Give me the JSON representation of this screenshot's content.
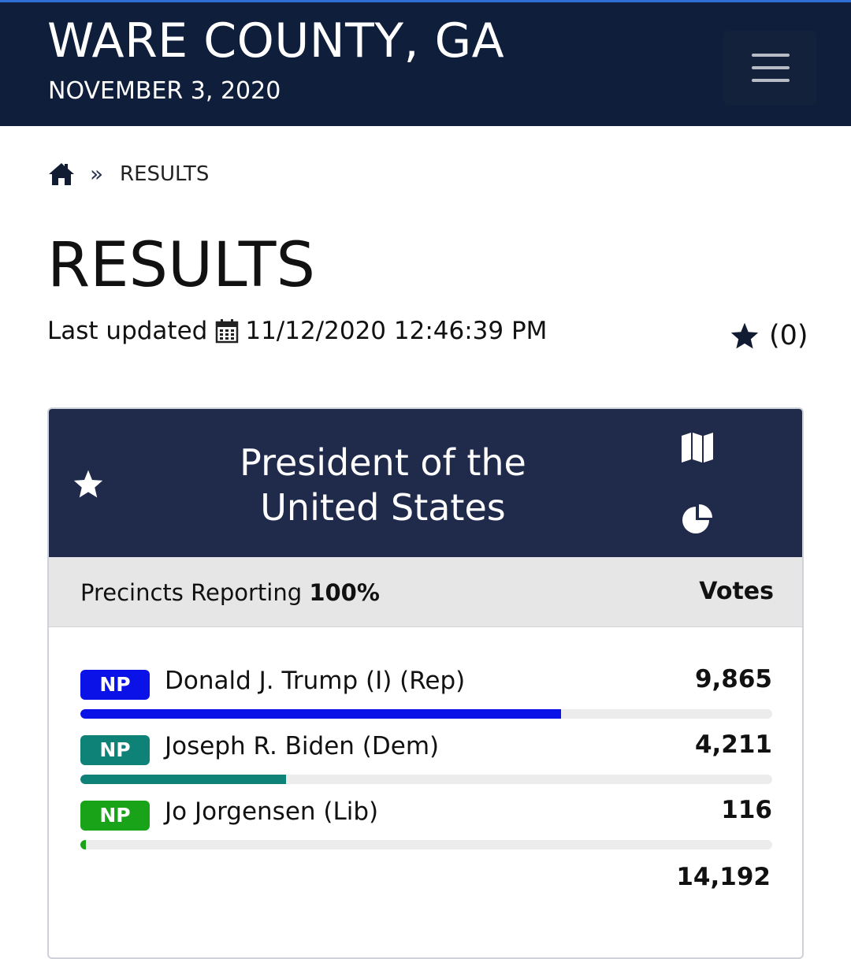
{
  "header": {
    "county": "WARE COUNTY, GA",
    "election_date": "NOVEMBER 3, 2020",
    "menu_icon": "hamburger-icon"
  },
  "breadcrumb": {
    "home_icon": "home-icon",
    "separator": "»",
    "current": "RESULTS"
  },
  "page": {
    "title": "RESULTS",
    "last_updated_label": "Last updated",
    "last_updated_value": "11/12/2020 12:46:39 PM",
    "favorites_count": "(0)"
  },
  "race": {
    "title": "President of the United States",
    "precincts_label": "Precincts Reporting",
    "precincts_value": "100%",
    "votes_label": "Votes",
    "candidates": [
      {
        "badge": "NP",
        "name": "Donald J. Trump (I) (Rep)",
        "votes": "9,865",
        "share": 0.695,
        "color": "#0a12e8"
      },
      {
        "badge": "NP",
        "name": "Joseph R. Biden (Dem)",
        "votes": "4,211",
        "share": 0.297,
        "color": "#0f8277"
      },
      {
        "badge": "NP",
        "name": "Jo Jorgensen (Lib)",
        "votes": "116",
        "share": 0.008,
        "color": "#19a319"
      }
    ],
    "total_votes": "14,192"
  },
  "colors": {
    "header_bg": "#0f1e3a",
    "card_header_bg": "#202a4a",
    "subheader_bg": "#e6e6e6"
  }
}
